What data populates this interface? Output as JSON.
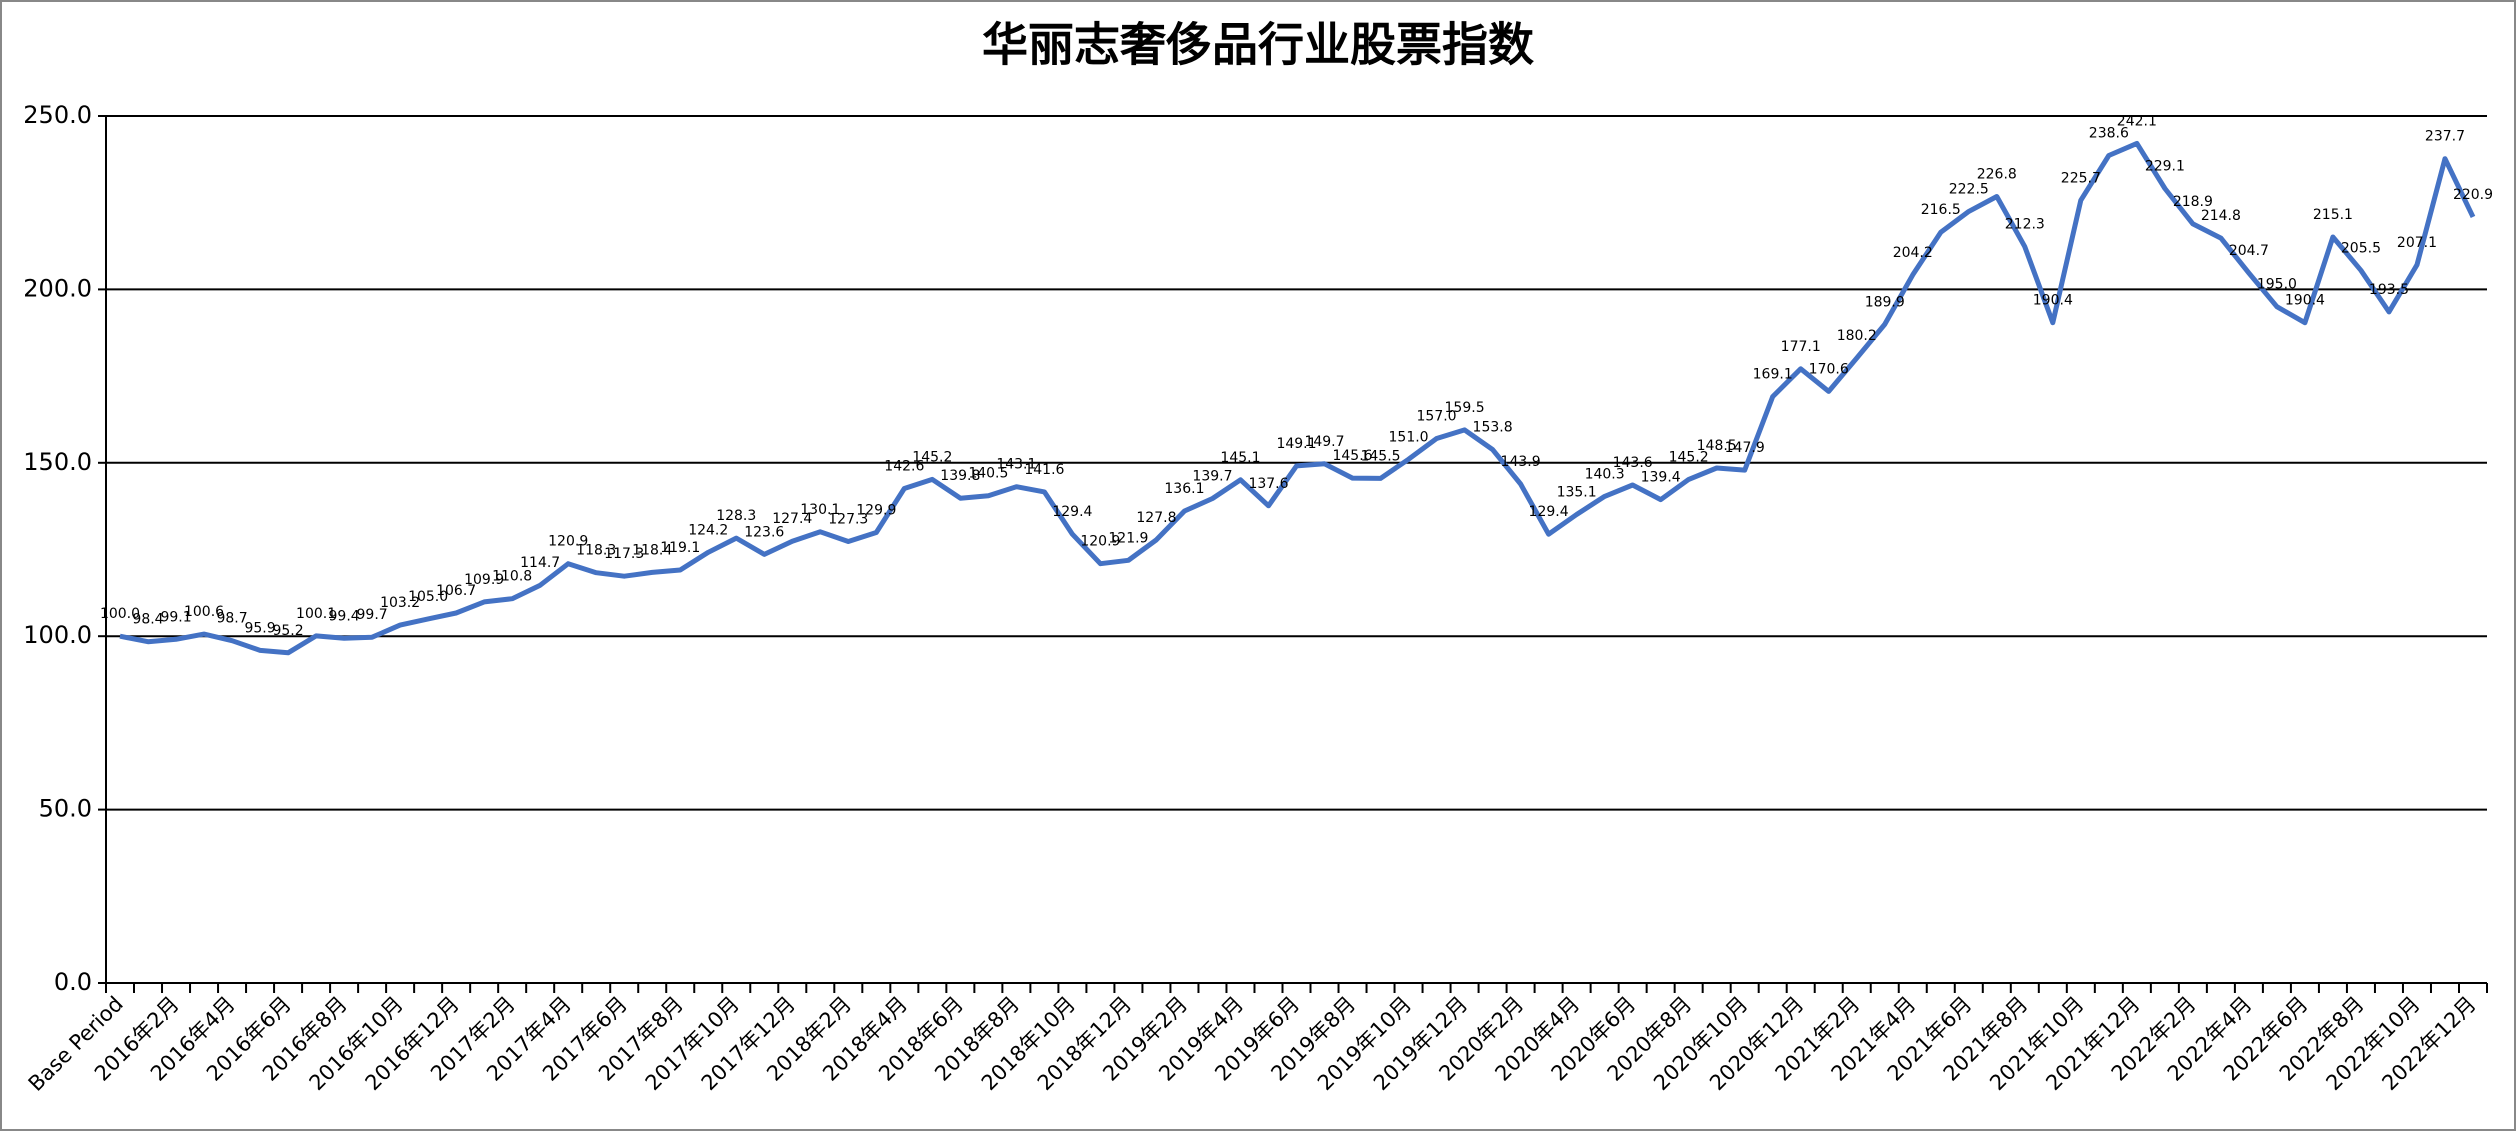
{
  "chart_data": {
    "type": "line",
    "title": "华丽志奢侈品行业股票指数",
    "categories": [
      "Base Period",
      null,
      "2016年2月",
      null,
      "2016年4月",
      null,
      "2016年6月",
      null,
      "2016年8月",
      null,
      "2016年10月",
      null,
      "2016年12月",
      null,
      "2017年2月",
      null,
      "2017年4月",
      null,
      "2017年6月",
      null,
      "2017年8月",
      null,
      "2017年10月",
      null,
      "2017年12月",
      null,
      "2018年2月",
      null,
      "2018年4月",
      null,
      "2018年6月",
      null,
      "2018年8月",
      null,
      "2018年10月",
      null,
      "2018年12月",
      null,
      "2019年2月",
      null,
      "2019年4月",
      null,
      "2019年6月",
      null,
      "2019年8月",
      null,
      "2019年10月",
      null,
      "2019年12月",
      null,
      "2020年2月",
      null,
      "2020年4月",
      null,
      "2020年6月",
      null,
      "2020年8月",
      null,
      "2020年10月",
      null,
      "2020年12月",
      null,
      "2021年2月",
      null,
      "2021年4月",
      null,
      "2021年6月",
      null,
      "2021年8月",
      null,
      "2021年10月",
      null,
      "2021年12月",
      null,
      "2022年2月",
      null,
      "2022年4月",
      null,
      "2022年6月",
      null,
      "2022年8月",
      null,
      "2022年10月",
      null,
      "2022年12月"
    ],
    "series": [
      {
        "color": "#4472c4",
        "values": [
          100.0,
          98.4,
          99.1,
          100.6,
          98.7,
          95.9,
          95.2,
          100.1,
          99.4,
          99.7,
          103.2,
          105.0,
          106.7,
          109.9,
          110.8,
          114.7,
          120.9,
          118.3,
          117.3,
          118.4,
          119.1,
          124.2,
          128.3,
          123.6,
          127.4,
          130.1,
          127.3,
          129.9,
          142.6,
          145.2,
          139.8,
          140.5,
          143.1,
          141.6,
          129.4,
          120.9,
          121.9,
          127.8,
          136.1,
          139.7,
          145.1,
          137.6,
          149.1,
          149.7,
          145.6,
          145.5,
          151.0,
          157.0,
          159.5,
          153.8,
          143.9,
          129.4,
          135.1,
          140.3,
          143.6,
          139.4,
          145.2,
          148.5,
          147.9,
          169.1,
          177.1,
          170.6,
          180.2,
          189.9,
          204.2,
          216.5,
          222.5,
          226.8,
          212.3,
          190.4,
          225.7,
          238.6,
          242.1,
          229.1,
          218.9,
          214.8,
          204.7,
          195.0,
          190.4,
          215.1,
          205.5,
          193.5,
          207.1,
          237.7,
          220.9
        ],
        "value_labels": [
          "100.0",
          "98.4",
          "99.1",
          "100.6",
          "98.7",
          "95.9",
          "95.2",
          "100.1",
          "99.4",
          "99.7",
          "103.2",
          "105.0",
          "106.7",
          "109.9",
          "110.8",
          "114.7",
          "120.9",
          "118.3",
          "117.3",
          "118.4",
          "119.1",
          "124.2",
          "128.3",
          "123.6",
          "127.4",
          "130.1",
          "127.3",
          "129.9",
          "142.6",
          "145.2",
          "139.8",
          "140.5",
          "143.1",
          "141.6",
          "129.4",
          "120.9",
          "121.9",
          "127.8",
          "136.1",
          "139.7",
          "145.1",
          "137.6",
          "149.1",
          "149.7",
          "145.6",
          "145.5",
          "151.0",
          "157.0",
          "159.5",
          "153.8",
          "143.9",
          "129.4",
          "135.1",
          "140.3",
          "143.6",
          "139.4",
          "145.2",
          "148.5",
          "147.9",
          "169.1",
          "177.1",
          "170.6",
          "180.2",
          "189.9",
          "204.2",
          "216.5",
          "222.5",
          "226.8",
          "212.3",
          "190.4",
          "225.7",
          "238.6",
          "242.1",
          "229.1",
          "218.9",
          "214.8",
          "204.7",
          "195.0",
          "190.4",
          "215.1",
          "205.5",
          "193.5",
          "207.1",
          "237.7",
          "220.9"
        ]
      }
    ],
    "ylim": [
      0,
      250
    ],
    "yticks": [
      {
        "value": 0,
        "label": "0.0"
      },
      {
        "value": 50,
        "label": "50.0"
      },
      {
        "value": 100,
        "label": "100.0"
      },
      {
        "value": 150,
        "label": "150.0"
      },
      {
        "value": 200,
        "label": "200.0"
      },
      {
        "value": 250,
        "label": "250.0"
      }
    ],
    "grid": true
  }
}
